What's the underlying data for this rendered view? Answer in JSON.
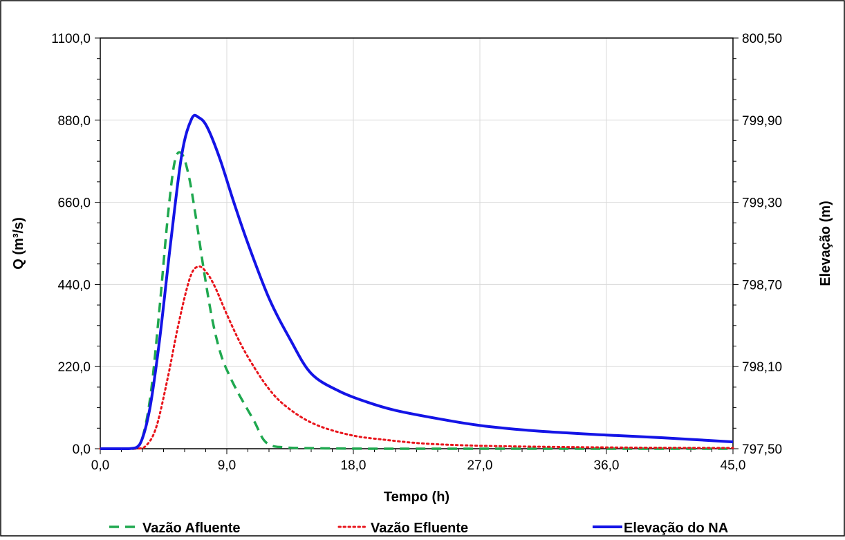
{
  "chart_data": {
    "type": "line",
    "xlabel": "Tempo (h)",
    "ylabel": "Q (m³/s)",
    "y2label": "Elevação (m)",
    "xlim": [
      0,
      45
    ],
    "ylim": [
      0,
      1100
    ],
    "y2lim": [
      797.5,
      800.5
    ],
    "x_ticks": [
      "0,0",
      "9,0",
      "18,0",
      "27,0",
      "36,0",
      "45,0"
    ],
    "y_ticks": [
      "0,0",
      "220,0",
      "440,0",
      "660,0",
      "880,0",
      "1100,0"
    ],
    "y2_ticks": [
      "797,50",
      "798,10",
      "798,70",
      "799,30",
      "799,90",
      "800,50"
    ],
    "grid": true,
    "legend_position": "bottom",
    "series": [
      {
        "name": "Vazão Afluente",
        "axis": "left",
        "style": "dashed",
        "color": "#1fa84f",
        "x": [
          0,
          1.5,
          2.4,
          3.0,
          3.6,
          4.2,
          4.8,
          5.3,
          5.8,
          6.3,
          6.8,
          7.4,
          8.0,
          8.6,
          9.2,
          9.8,
          10.4,
          11.0,
          11.6,
          12.2,
          13.0,
          14.0,
          16.0,
          20.0,
          30.0,
          45.0
        ],
        "y": [
          0,
          0,
          0,
          30,
          150,
          370,
          620,
          770,
          790,
          730,
          620,
          470,
          340,
          250,
          195,
          150,
          110,
          70,
          25,
          8,
          4,
          2,
          1,
          0,
          0,
          0
        ]
      },
      {
        "name": "Vazão Efluente",
        "axis": "left",
        "style": "dotted",
        "color": "#e8141b",
        "x": [
          0,
          2.5,
          3.3,
          4.0,
          4.8,
          5.6,
          6.4,
          7.0,
          7.6,
          8.2,
          9.0,
          10.0,
          11.0,
          12.0,
          13.0,
          14.5,
          16.0,
          18.0,
          20.0,
          23.0,
          27.0,
          32.0,
          38.0,
          45.0
        ],
        "y": [
          0,
          0,
          10,
          60,
          190,
          340,
          460,
          488,
          470,
          430,
          360,
          280,
          215,
          160,
          120,
          80,
          55,
          35,
          25,
          14,
          8,
          5,
          3,
          2
        ]
      },
      {
        "name": "Elevação do NA",
        "axis": "right",
        "style": "solid",
        "color": "#1414e6",
        "x": [
          0,
          2.0,
          2.8,
          3.5,
          4.2,
          5.0,
          5.8,
          6.5,
          7.0,
          7.6,
          8.5,
          9.5,
          10.5,
          12.0,
          13.5,
          15.0,
          17.0,
          19.0,
          21.0,
          24.0,
          27.0,
          31.0,
          36.0,
          40.0,
          45.0
        ],
        "y": [
          797.5,
          797.5,
          797.53,
          797.78,
          798.28,
          799.0,
          799.65,
          799.91,
          799.92,
          799.85,
          799.62,
          799.3,
          799.0,
          798.6,
          798.3,
          798.05,
          797.92,
          797.84,
          797.78,
          797.72,
          797.67,
          797.63,
          797.6,
          797.58,
          797.55
        ]
      }
    ]
  }
}
